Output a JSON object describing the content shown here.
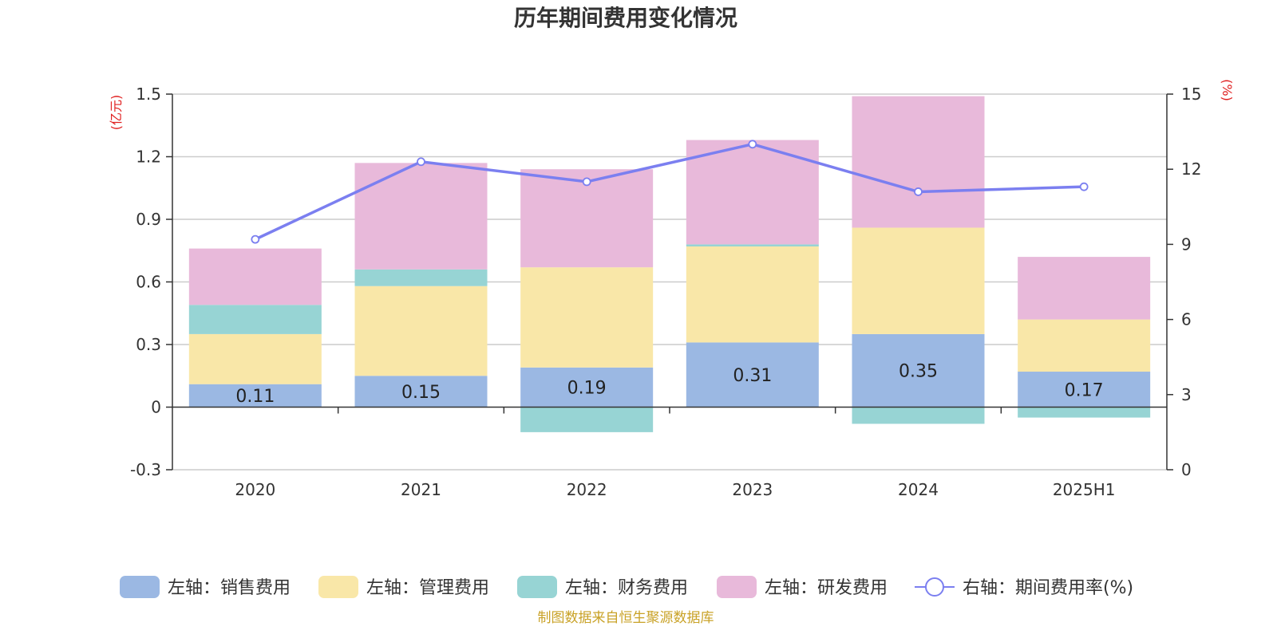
{
  "chart_data": {
    "type": "bar",
    "title": "历年期间费用变化情况",
    "categories": [
      "2020",
      "2021",
      "2022",
      "2023",
      "2024",
      "2025H1"
    ],
    "left_axis": {
      "unit": "(亿元)",
      "ylim": [
        -0.3,
        1.5
      ],
      "ticks": [
        "1.5",
        "1.2",
        "0.9",
        "0.6",
        "0.3",
        "0",
        "-0.3"
      ],
      "tick_values": [
        1.5,
        1.2,
        0.9,
        0.6,
        0.3,
        0,
        -0.3
      ]
    },
    "right_axis": {
      "unit": "(%)",
      "ylim": [
        0,
        15
      ],
      "ticks": [
        "15",
        "12",
        "9",
        "6",
        "3",
        "0"
      ],
      "tick_values": [
        15,
        12,
        9,
        6,
        3,
        0
      ]
    },
    "stacked": true,
    "series": [
      {
        "name": "左轴：销售费用",
        "color": "#9bb8e3",
        "values": [
          0.11,
          0.15,
          0.19,
          0.31,
          0.35,
          0.17
        ],
        "labels": [
          "0.11",
          "0.15",
          "0.19",
          "0.31",
          "0.35",
          "0.17"
        ]
      },
      {
        "name": "左轴：管理费用",
        "color": "#f9e7a8",
        "values": [
          0.24,
          0.43,
          0.48,
          0.46,
          0.51,
          0.25
        ]
      },
      {
        "name": "左轴：财务费用",
        "color": "#97d4d4",
        "values": [
          0.14,
          0.08,
          -0.12,
          0.01,
          -0.08,
          -0.05
        ]
      },
      {
        "name": "左轴：研发费用",
        "color": "#e8b9da",
        "values": [
          0.27,
          0.51,
          0.47,
          0.5,
          0.63,
          0.3
        ]
      }
    ],
    "line_series": {
      "name": "右轴：期间费用率(%)",
      "color": "#7b7ff0",
      "axis": "right",
      "values": [
        9.2,
        12.3,
        11.5,
        13.0,
        11.1,
        11.3
      ]
    },
    "grid": true,
    "legend_position": "bottom"
  },
  "source_note": "制图数据来自恒生聚源数据库"
}
